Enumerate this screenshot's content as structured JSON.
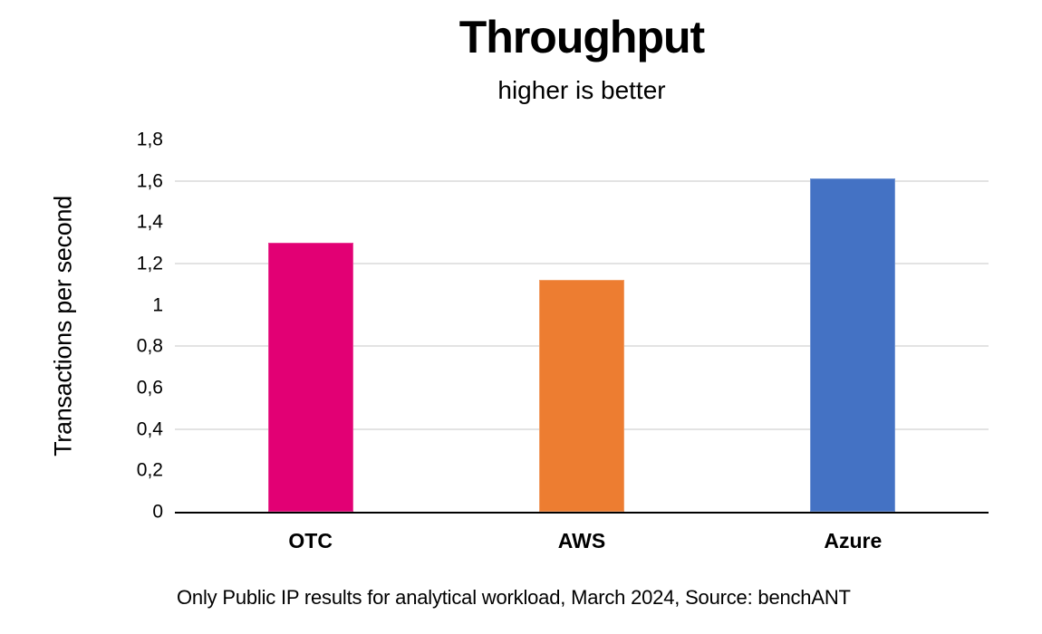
{
  "page": {
    "title": "Throughput",
    "subtitle": "higher is better",
    "footnote": "Only Public IP results for analytical workload, March 2024, Source: benchANT"
  },
  "chart_data": {
    "type": "bar",
    "title": "Throughput",
    "subtitle": "higher is better",
    "xlabel": "",
    "ylabel": "Transactions per second",
    "categories": [
      "OTC",
      "AWS",
      "Azure"
    ],
    "values": [
      1.3,
      1.12,
      1.61
    ],
    "bar_colors": [
      "#e20074",
      "#ed7d31",
      "#4472c4"
    ],
    "ylim": [
      0,
      1.8
    ],
    "ytick_values": [
      0,
      0.2,
      0.4,
      0.6,
      0.8,
      1,
      1.2,
      1.4,
      1.6,
      1.8
    ],
    "ytick_labels": [
      "0",
      "0,2",
      "0,4",
      "0,6",
      "0,8",
      "1",
      "1,2",
      "1,4",
      "1,6",
      "1,8"
    ],
    "gridline_values": [
      0.4,
      0.8,
      1.2,
      1.6
    ],
    "grid": true,
    "legend": "none",
    "gridline_color": "#e3e3e3",
    "axis_color": "#000000",
    "annotation": "Only Public IP results for analytical workload, March 2024, Source: benchANT"
  }
}
